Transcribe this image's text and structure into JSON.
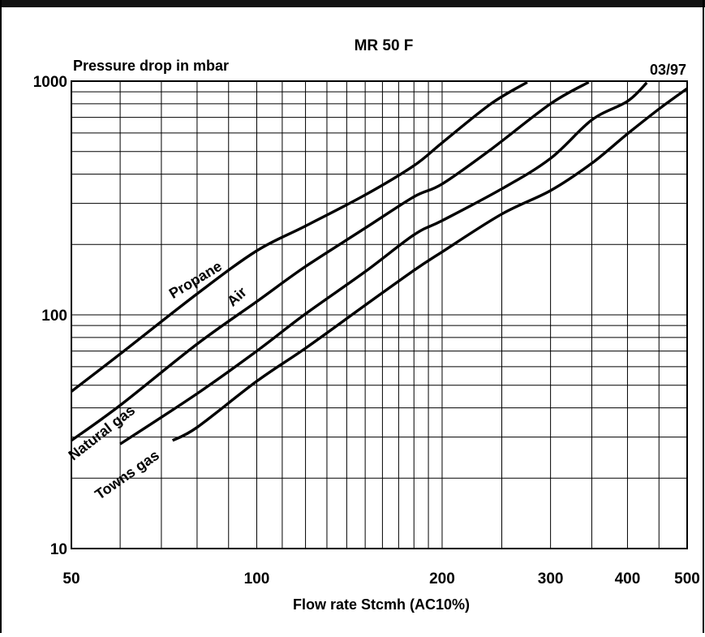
{
  "chart_data": {
    "type": "line",
    "title": "MR 50 F",
    "code": "03/97",
    "ylabel": "Pressure drop in mbar",
    "xlabel": "Flow rate Stcmh (AC10%)",
    "x_scale": "log",
    "y_scale": "log",
    "xlim": [
      50,
      500
    ],
    "ylim": [
      10,
      1000
    ],
    "x_ticks": [
      50,
      100,
      200,
      300,
      400,
      500
    ],
    "x_tick_labels": [
      "50",
      "100",
      "200",
      "300",
      "400",
      "500"
    ],
    "y_ticks": [
      10,
      100,
      1000
    ],
    "y_tick_labels": [
      "10",
      "100",
      "1000"
    ],
    "grid": true,
    "series": [
      {
        "name": "Propane",
        "points": [
          [
            50,
            47
          ],
          [
            60,
            68
          ],
          [
            80,
            123
          ],
          [
            100,
            188
          ],
          [
            120,
            240
          ],
          [
            150,
            326
          ],
          [
            180,
            435
          ],
          [
            200,
            545
          ],
          [
            240,
            800
          ],
          [
            275,
            990
          ]
        ]
      },
      {
        "name": "Air",
        "points": [
          [
            50,
            29
          ],
          [
            60,
            41
          ],
          [
            80,
            75
          ],
          [
            100,
            114
          ],
          [
            120,
            161
          ],
          [
            150,
            235
          ],
          [
            180,
            320
          ],
          [
            200,
            363
          ],
          [
            240,
            510
          ],
          [
            300,
            800
          ],
          [
            346,
            990
          ]
        ]
      },
      {
        "name": "Natural gas",
        "points": [
          [
            60,
            28
          ],
          [
            80,
            46
          ],
          [
            100,
            70
          ],
          [
            120,
            101
          ],
          [
            150,
            153
          ],
          [
            180,
            220
          ],
          [
            200,
            253
          ],
          [
            250,
            346
          ],
          [
            300,
            467
          ],
          [
            350,
            682
          ],
          [
            400,
            820
          ],
          [
            430,
            985
          ]
        ]
      },
      {
        "name": "Towns gas",
        "points": [
          [
            73,
            29
          ],
          [
            80,
            33
          ],
          [
            100,
            52
          ],
          [
            120,
            72
          ],
          [
            150,
            110
          ],
          [
            180,
            155
          ],
          [
            200,
            186
          ],
          [
            250,
            270
          ],
          [
            300,
            340
          ],
          [
            350,
            445
          ],
          [
            400,
            595
          ],
          [
            450,
            760
          ],
          [
            500,
            930
          ]
        ]
      }
    ]
  }
}
